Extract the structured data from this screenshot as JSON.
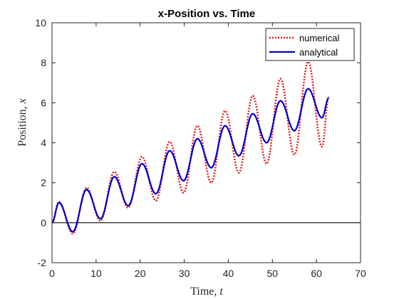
{
  "chart_data": {
    "type": "line",
    "title": "x-Position vs. Time",
    "xlabel_word": "Time, ",
    "xlabel_var": "t",
    "ylabel_word": "Position, ",
    "ylabel_var": "x",
    "xlim": [
      0,
      70
    ],
    "ylim": [
      -2,
      10
    ],
    "xticks": [
      0,
      10,
      20,
      30,
      40,
      50,
      60,
      70
    ],
    "yticks": [
      -2,
      0,
      2,
      4,
      6,
      8,
      10
    ],
    "grid": false,
    "legend_position": "top-right",
    "reference_line_y": 0,
    "t_end": 62.8,
    "series": [
      {
        "name": "numerical",
        "style": "dotted",
        "color": "#e41a1c",
        "points": [
          [
            0,
            0
          ],
          [
            1.57,
            1.05
          ],
          [
            4.71,
            -0.55
          ],
          [
            7.85,
            1.75
          ],
          [
            10.99,
            0.1
          ],
          [
            14.14,
            2.55
          ],
          [
            17.28,
            0.75
          ],
          [
            20.42,
            3.3
          ],
          [
            23.56,
            1.1
          ],
          [
            26.7,
            4.05
          ],
          [
            29.85,
            1.5
          ],
          [
            32.99,
            4.85
          ],
          [
            36.13,
            2.0
          ],
          [
            39.27,
            5.6
          ],
          [
            42.41,
            2.5
          ],
          [
            45.55,
            6.35
          ],
          [
            48.69,
            2.95
          ],
          [
            51.84,
            7.2
          ],
          [
            54.98,
            3.4
          ],
          [
            58.12,
            8.05
          ],
          [
            61.26,
            3.8
          ],
          [
            62.8,
            6.3
          ]
        ]
      },
      {
        "name": "analytical",
        "style": "solid",
        "color": "#0000cc",
        "points": [
          [
            0,
            0
          ],
          [
            1.57,
            1.0
          ],
          [
            4.71,
            -0.45
          ],
          [
            7.85,
            1.65
          ],
          [
            10.99,
            0.2
          ],
          [
            14.14,
            2.3
          ],
          [
            17.28,
            0.85
          ],
          [
            20.42,
            2.95
          ],
          [
            23.56,
            1.45
          ],
          [
            26.7,
            3.6
          ],
          [
            29.85,
            2.1
          ],
          [
            32.99,
            4.2
          ],
          [
            36.13,
            2.75
          ],
          [
            39.27,
            4.85
          ],
          [
            42.41,
            3.35
          ],
          [
            45.55,
            5.45
          ],
          [
            48.69,
            4.0
          ],
          [
            51.84,
            6.1
          ],
          [
            54.98,
            4.6
          ],
          [
            58.12,
            6.7
          ],
          [
            61.26,
            5.25
          ],
          [
            62.8,
            6.25
          ]
        ]
      }
    ]
  }
}
